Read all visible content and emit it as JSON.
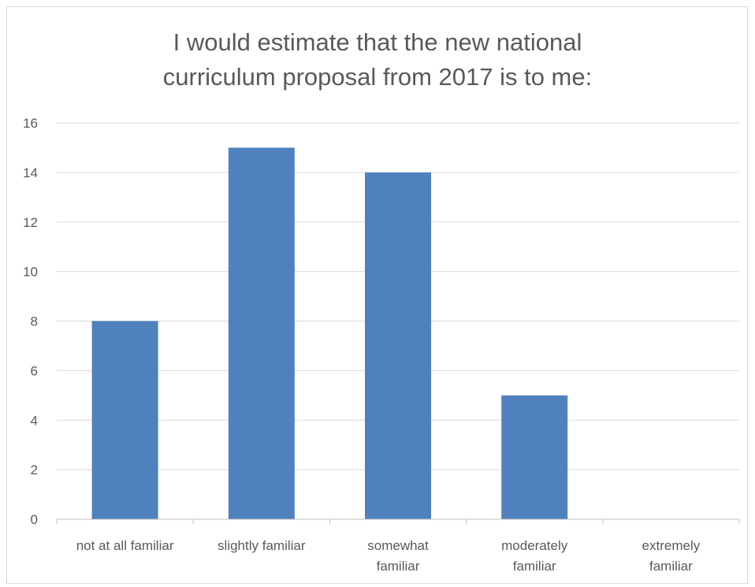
{
  "chart_data": {
    "type": "bar",
    "title": "I would estimate that the new national\ncurriculum proposal from 2017 is to me:",
    "categories": [
      [
        "not at all familiar"
      ],
      [
        "slightly familiar"
      ],
      [
        "somewhat",
        "familiar"
      ],
      [
        "moderately",
        "familiar"
      ],
      [
        "extremely",
        "familiar"
      ]
    ],
    "values": [
      8,
      15,
      14,
      5,
      0
    ],
    "ylim": [
      0,
      16
    ],
    "yticks": [
      "0",
      "2",
      "4",
      "6",
      "8",
      "10",
      "12",
      "14",
      "16"
    ],
    "xlabel": "",
    "ylabel": "",
    "grid": true,
    "bar_color": "#4f81bd",
    "grid_color": "#d9d9d9",
    "axis_color": "#bfbfbf"
  }
}
